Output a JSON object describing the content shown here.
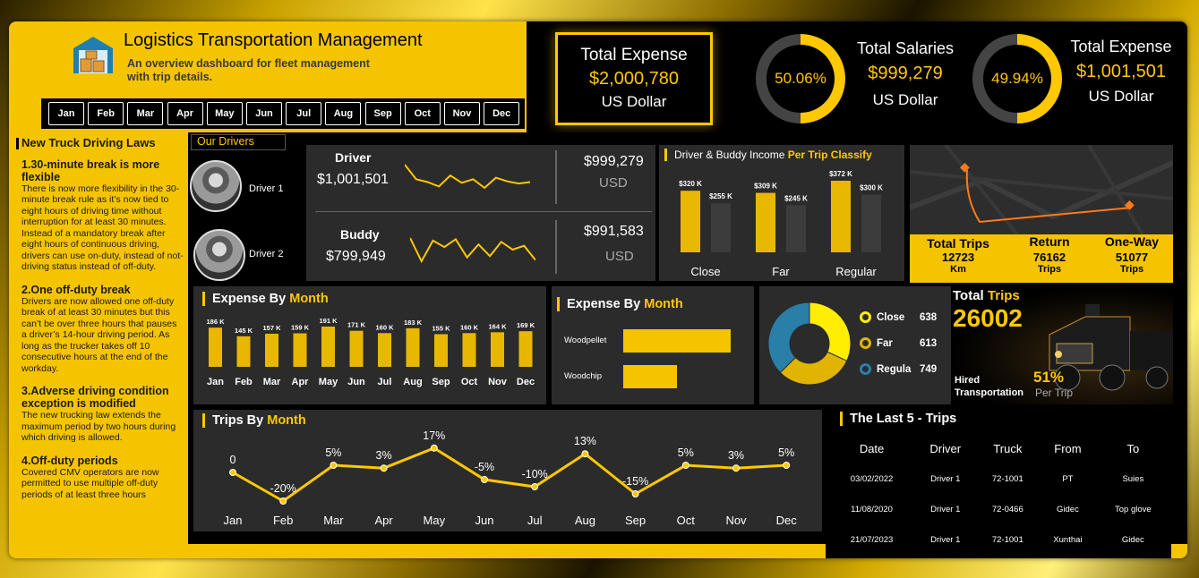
{
  "header": {
    "title": "Logistics Transportation Management",
    "subtitle_line1": "An overview dashboard for fleet management",
    "subtitle_line2": "with trip details."
  },
  "months": [
    "Jan",
    "Feb",
    "Mar",
    "Apr",
    "May",
    "Jun",
    "Jul",
    "Aug",
    "Sep",
    "Oct",
    "Nov",
    "Dec"
  ],
  "kpi_total_expense": {
    "label": "Total Expense",
    "value": "$2,000,780",
    "unit": "US Dollar"
  },
  "kpi_salaries": {
    "label": "Total Salaries",
    "value": "$999,279",
    "unit": "US Dollar",
    "percent": "50.06%",
    "fraction": 0.5006
  },
  "kpi_expense2": {
    "label": "Total Expense",
    "value": "$1,001,501",
    "unit": "US Dollar",
    "percent": "49.94%",
    "fraction": 0.4994
  },
  "laws": {
    "heading": "New Truck Driving Laws",
    "items": [
      {
        "title": "1.30-minute break is more flexible",
        "body": "There is now more flexibility in the 30-minute break rule as it’s now tied to eight hours of driving time without interruption for at least 30 minutes. Instead of a mandatory break after eight hours of continuous driving, drivers can use on-duty, instead of not-driving status instead of off-duty."
      },
      {
        "title": "2.One off-duty break",
        "body": "Drivers are now allowed one off-duty break of at least 30 minutes but this can’t be over three hours that pauses a driver’s 14-hour driving period. As long as the trucker takes off 10 consecutive hours at the end of the workday."
      },
      {
        "title": "3.Adverse driving condition exception is modified",
        "body": "The new trucking law extends the maximum period by two hours during which driving is allowed."
      },
      {
        "title": "4.Off-duty periods",
        "body": "Covered CMV operators are now permitted to use multiple off-duty periods of at least three hours"
      }
    ]
  },
  "drivers": {
    "tab_label": "Our Drivers",
    "list": [
      {
        "name": "Driver 1"
      },
      {
        "name": "Driver 2"
      }
    ],
    "driver": {
      "label": "Driver",
      "value": "$1,001,501",
      "right_value": "$999,279",
      "right_unit": "USD",
      "trend": [
        5,
        3,
        2.6,
        2,
        3.5,
        2.5,
        3,
        1.8,
        3.2,
        2.7,
        2.4,
        2.6
      ]
    },
    "buddy": {
      "label": "Buddy",
      "value": "$799,949",
      "right_value": "$991,583",
      "right_unit": "USD",
      "trend": [
        3,
        1.2,
        2.8,
        2.3,
        2.9,
        1.5,
        2.5,
        1.6,
        2.7,
        2.1,
        2.4,
        1.3
      ]
    }
  },
  "income_chart": {
    "title_a": "Driver & Buddy Income ",
    "title_b": "Per Trip Classify",
    "chart_data": {
      "type": "bar",
      "categories": [
        "Close",
        "Far",
        "Regular"
      ],
      "series": [
        {
          "values": [
            320,
            309,
            372
          ],
          "labels": [
            "$320 K",
            "$309 K",
            "$372 K"
          ]
        },
        {
          "values": [
            255,
            245,
            300
          ],
          "labels": [
            "$255 K",
            "$245 K",
            "$300 K"
          ]
        }
      ]
    }
  },
  "trips_summary": {
    "total": {
      "label": "Total Trips",
      "value": "12723",
      "unit": "Km"
    },
    "return": {
      "label": "Return",
      "value": "76162",
      "unit": "Trips"
    },
    "oneway": {
      "label": "One-Way",
      "value": "51077",
      "unit": "Trips"
    }
  },
  "expense_by_month": {
    "title_a": "Expense By ",
    "title_b": "Month",
    "chart_data": {
      "type": "bar",
      "categories": [
        "Jan",
        "Feb",
        "Mar",
        "Apr",
        "May",
        "Jun",
        "Jul",
        "Aug",
        "Sep",
        "Oct",
        "Nov",
        "Dec"
      ],
      "values": [
        186,
        145,
        157,
        159,
        191,
        171,
        160,
        183,
        155,
        160,
        164,
        169
      ],
      "labels": [
        "186 K",
        "145 K",
        "157 K",
        "159 K",
        "191 K",
        "171 K",
        "160 K",
        "183 K",
        "155 K",
        "160 K",
        "164 K",
        "169 K"
      ]
    }
  },
  "expense_by_type": {
    "title_a": "Expense By ",
    "title_b": "Month",
    "chart_data": {
      "type": "bar",
      "categories": [
        "Woodpellet",
        "Woodchip"
      ],
      "values": [
        100,
        50
      ]
    }
  },
  "donut": {
    "chart_data": {
      "type": "pie",
      "categories": [
        "Close",
        "Far",
        "Regula"
      ],
      "values": [
        638,
        613,
        749
      ],
      "colors": [
        "#ffee00",
        "#e0b400",
        "#2a7fa8"
      ]
    }
  },
  "hired": {
    "title_a": "Total ",
    "title_b": "Trips",
    "value": "26002",
    "label_line1": "Hired",
    "label_line2": "Transportation",
    "percent": "51%",
    "percent_label": "Per Trip"
  },
  "trips_by_month": {
    "title_a": "Trips  By ",
    "title_b": "Month",
    "chart_data": {
      "type": "line",
      "categories": [
        "Jan",
        "Feb",
        "Mar",
        "Apr",
        "May",
        "Jun",
        "Jul",
        "Aug",
        "Sep",
        "Oct",
        "Nov",
        "Dec"
      ],
      "values": [
        0,
        -20,
        5,
        3,
        17,
        -5,
        -10,
        13,
        -15,
        5,
        3,
        5
      ],
      "labels": [
        "0",
        "-20%",
        "5%",
        "3%",
        "17%",
        "-5%",
        "-10%",
        "13%",
        "-15%",
        "5%",
        "3%",
        "5%"
      ]
    }
  },
  "last_trips": {
    "title": "The Last 5 - Trips",
    "columns": [
      "Date",
      "Driver",
      "Truck",
      "From",
      "To"
    ],
    "rows": [
      [
        "03/02/2022",
        "Driver 1",
        "72-1001",
        "PT",
        "Suies"
      ],
      [
        "11/08/2020",
        "Driver 1",
        "72-0466",
        "Gidec",
        "Top glove"
      ],
      [
        "21/07/2023",
        "Driver 1",
        "72-1001",
        "Xunthai",
        "Gidec"
      ]
    ]
  }
}
